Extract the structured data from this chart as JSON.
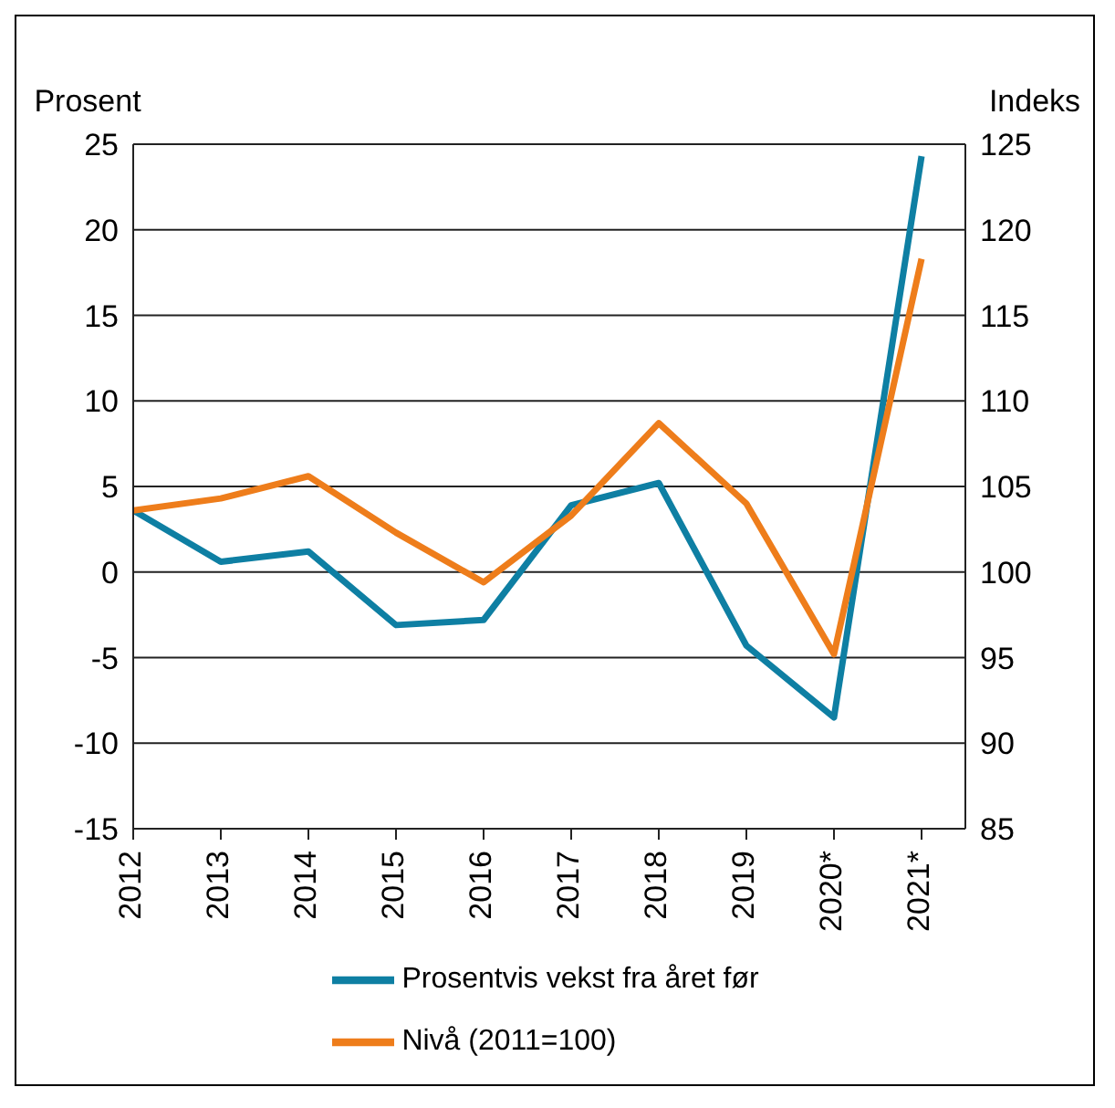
{
  "chart_data": {
    "type": "line",
    "ylabel": "Prosent",
    "y2label": "Indeks",
    "categories": [
      "2012",
      "2013",
      "2014",
      "2015",
      "2016",
      "2017",
      "2018",
      "2019",
      "2020*",
      "2021*"
    ],
    "series": [
      {
        "name": "Prosentvis vekst fra året før",
        "color": "#0e7fa3",
        "values": [
          3.6,
          0.6,
          1.2,
          -3.1,
          -2.8,
          3.9,
          5.2,
          -4.3,
          -8.5,
          24.3
        ]
      },
      {
        "name": "Nivå (2011=100)",
        "color": "#ee7d1b",
        "axis": "y2",
        "values": [
          103.6,
          104.3,
          105.6,
          102.3,
          99.4,
          103.3,
          108.7,
          104.0,
          95.2,
          118.3
        ]
      }
    ],
    "ylim": [
      -15,
      25
    ],
    "yticks": [
      -15,
      -10,
      -5,
      0,
      5,
      10,
      15,
      20,
      25
    ],
    "y2lim": [
      85,
      125
    ],
    "y2ticks": [
      85,
      90,
      95,
      100,
      105,
      110,
      115,
      120,
      125
    ],
    "grid": "y",
    "legend": "bottom",
    "marker": "none",
    "line_style": "solid"
  }
}
